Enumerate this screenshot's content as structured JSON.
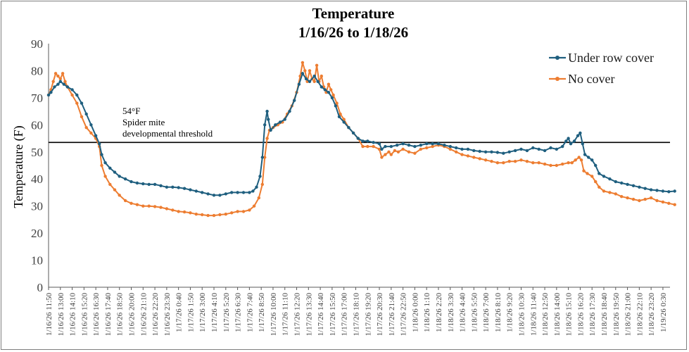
{
  "chart_data": {
    "type": "line",
    "title": "Temperature",
    "subtitle": "1/16/26 to 1/18/26",
    "xlabel": "",
    "ylabel": "Temperature (F)",
    "ylim": [
      0,
      90
    ],
    "yticks": [
      0,
      10,
      20,
      30,
      40,
      50,
      60,
      70,
      80,
      90
    ],
    "grid": false,
    "legend_position": "top-right",
    "x_tick_labels": [
      "1/16/26 11:50",
      "1/16/26 13:00",
      "1/16/26 14:10",
      "1/16/26 15:20",
      "1/16/26 16:30",
      "1/16/26 17:40",
      "1/16/26 18:50",
      "1/16/26 20:00",
      "1/16/26 21:10",
      "1/16/26 22:20",
      "1/16/26 23:30",
      "1/17/26 0:40",
      "1/17/26 1:50",
      "1/17/26 3:00",
      "1/17/26 4:10",
      "1/17/26 5:20",
      "1/17/26 6:30",
      "1/17/26 7:40",
      "1/17/26 8:50",
      "1/17/26 10:00",
      "1/17/26 11:10",
      "1/17/26 12:20",
      "1/17/26 13:30",
      "1/17/26 14:40",
      "1/17/26 15:50",
      "1/17/26 17:00",
      "1/17/26 18:10",
      "1/17/26 19:20",
      "1/17/26 20:30",
      "1/17/26 21:40",
      "1/17/26 22:50",
      "1/18/26 0:00",
      "1/18/26 1:10",
      "1/18/26 2:20",
      "1/18/26 3:30",
      "1/18/26 4:40",
      "1/18/26 5:50",
      "1/18/26 7:00",
      "1/18/26 8:10",
      "1/18/26 9:20",
      "1/18/26 10:30",
      "1/18/26 11:40",
      "1/18/26 12:50",
      "1/18/26 14:00",
      "1/18/26 15:10",
      "1/18/26 16:20",
      "1/18/26 17:30",
      "1/18/26 18:40",
      "1/18/26 19:50",
      "1/18/26 21:00",
      "1/18/26 22:10",
      "1/18/26 23:20",
      "1/19/26 0:30"
    ],
    "threshold": {
      "value": 53.5,
      "label_lines": [
        "54°F",
        "Spider mite",
        "developmental threshold"
      ]
    },
    "series": [
      {
        "name": "Under row cover",
        "color": "#1f5f7f",
        "points": [
          [
            0,
            71
          ],
          [
            0.2,
            72
          ],
          [
            0.5,
            74
          ],
          [
            0.8,
            75
          ],
          [
            1,
            76
          ],
          [
            1.3,
            75
          ],
          [
            1.6,
            74
          ],
          [
            2,
            73
          ],
          [
            2.4,
            71
          ],
          [
            2.8,
            68
          ],
          [
            3.2,
            64
          ],
          [
            3.6,
            60
          ],
          [
            4,
            56
          ],
          [
            4.3,
            53
          ],
          [
            4.5,
            49
          ],
          [
            4.8,
            46
          ],
          [
            5.2,
            44
          ],
          [
            5.6,
            42.5
          ],
          [
            6,
            41
          ],
          [
            6.5,
            40
          ],
          [
            7,
            39
          ],
          [
            7.5,
            38.5
          ],
          [
            8,
            38.2
          ],
          [
            8.5,
            38
          ],
          [
            9,
            38
          ],
          [
            9.5,
            37.5
          ],
          [
            10,
            37
          ],
          [
            10.5,
            37
          ],
          [
            11,
            36.8
          ],
          [
            11.5,
            36.5
          ],
          [
            12,
            36
          ],
          [
            12.5,
            35.5
          ],
          [
            13,
            35
          ],
          [
            13.5,
            34.5
          ],
          [
            14,
            34
          ],
          [
            14.5,
            34
          ],
          [
            15,
            34.5
          ],
          [
            15.5,
            35
          ],
          [
            16,
            35
          ],
          [
            16.5,
            35
          ],
          [
            17,
            35
          ],
          [
            17.3,
            35.5
          ],
          [
            17.6,
            37
          ],
          [
            17.9,
            41
          ],
          [
            18.1,
            48
          ],
          [
            18.3,
            60
          ],
          [
            18.5,
            65
          ],
          [
            18.6,
            62
          ],
          [
            18.8,
            58
          ],
          [
            19.2,
            60
          ],
          [
            19.6,
            61
          ],
          [
            20,
            62
          ],
          [
            20.4,
            65
          ],
          [
            20.8,
            69
          ],
          [
            21.2,
            75
          ],
          [
            21.5,
            79
          ],
          [
            21.8,
            77
          ],
          [
            22.1,
            76
          ],
          [
            22.5,
            78
          ],
          [
            22.8,
            76
          ],
          [
            23.1,
            74
          ],
          [
            23.4,
            73
          ],
          [
            23.7,
            72
          ],
          [
            24,
            70
          ],
          [
            24.3,
            67
          ],
          [
            24.6,
            63
          ],
          [
            25,
            61
          ],
          [
            25.4,
            59
          ],
          [
            25.8,
            57
          ],
          [
            26.2,
            55
          ],
          [
            26.6,
            54
          ],
          [
            27,
            54
          ],
          [
            27.5,
            53.5
          ],
          [
            28,
            53
          ],
          [
            28.2,
            51
          ],
          [
            28.5,
            52
          ],
          [
            29,
            52
          ],
          [
            29.5,
            52.5
          ],
          [
            30,
            53
          ],
          [
            30.5,
            52.5
          ],
          [
            31,
            52
          ],
          [
            31.5,
            52.5
          ],
          [
            32,
            53
          ],
          [
            32.5,
            53
          ],
          [
            33,
            53
          ],
          [
            33.5,
            52.5
          ],
          [
            34,
            52
          ],
          [
            34.5,
            51.5
          ],
          [
            35,
            51
          ],
          [
            35.5,
            51
          ],
          [
            36,
            50.5
          ],
          [
            36.5,
            50.2
          ],
          [
            37,
            50
          ],
          [
            37.5,
            50
          ],
          [
            38,
            49.8
          ],
          [
            38.5,
            49.5
          ],
          [
            39,
            50
          ],
          [
            39.5,
            50.5
          ],
          [
            40,
            51
          ],
          [
            40.5,
            50.5
          ],
          [
            41,
            51.5
          ],
          [
            41.5,
            51
          ],
          [
            42,
            50.5
          ],
          [
            42.5,
            51.5
          ],
          [
            43,
            51
          ],
          [
            43.5,
            52
          ],
          [
            43.8,
            54
          ],
          [
            44,
            55
          ],
          [
            44.2,
            53
          ],
          [
            44.5,
            54
          ],
          [
            44.8,
            56
          ],
          [
            45,
            57
          ],
          [
            45.2,
            53
          ],
          [
            45.4,
            49
          ],
          [
            45.7,
            48
          ],
          [
            46,
            47
          ],
          [
            46.3,
            45
          ],
          [
            46.6,
            42
          ],
          [
            47,
            41
          ],
          [
            47.5,
            40
          ],
          [
            48,
            39
          ],
          [
            48.5,
            38.5
          ],
          [
            49,
            38
          ],
          [
            49.5,
            37.5
          ],
          [
            50,
            37
          ],
          [
            50.5,
            36.5
          ],
          [
            51,
            36
          ],
          [
            51.5,
            35.8
          ],
          [
            52,
            35.5
          ],
          [
            52.5,
            35.3
          ],
          [
            53,
            35.5
          ]
        ]
      },
      {
        "name": "No cover",
        "color": "#ed7d31",
        "points": [
          [
            0,
            71
          ],
          [
            0.2,
            73
          ],
          [
            0.4,
            76
          ],
          [
            0.6,
            79
          ],
          [
            0.8,
            78
          ],
          [
            1,
            77
          ],
          [
            1.2,
            79
          ],
          [
            1.4,
            76
          ],
          [
            1.6,
            74
          ],
          [
            2,
            71
          ],
          [
            2.4,
            68
          ],
          [
            2.8,
            63
          ],
          [
            3.2,
            59
          ],
          [
            3.6,
            57
          ],
          [
            4,
            55
          ],
          [
            4.3,
            52
          ],
          [
            4.5,
            45
          ],
          [
            4.8,
            41
          ],
          [
            5.2,
            38
          ],
          [
            5.6,
            36
          ],
          [
            6,
            34
          ],
          [
            6.5,
            32
          ],
          [
            7,
            31
          ],
          [
            7.5,
            30.5
          ],
          [
            8,
            30
          ],
          [
            8.5,
            30
          ],
          [
            9,
            29.8
          ],
          [
            9.5,
            29.5
          ],
          [
            10,
            29
          ],
          [
            10.5,
            28.5
          ],
          [
            11,
            28
          ],
          [
            11.5,
            27.8
          ],
          [
            12,
            27.5
          ],
          [
            12.5,
            27
          ],
          [
            13,
            26.8
          ],
          [
            13.5,
            26.5
          ],
          [
            14,
            26.5
          ],
          [
            14.5,
            26.8
          ],
          [
            15,
            27
          ],
          [
            15.5,
            27.5
          ],
          [
            16,
            28
          ],
          [
            16.5,
            28
          ],
          [
            17,
            28.5
          ],
          [
            17.4,
            30
          ],
          [
            17.8,
            33
          ],
          [
            18.1,
            38
          ],
          [
            18.3,
            48
          ],
          [
            18.5,
            55
          ],
          [
            18.7,
            58
          ],
          [
            19,
            59
          ],
          [
            19.4,
            60
          ],
          [
            19.8,
            61
          ],
          [
            20.2,
            64
          ],
          [
            20.6,
            67
          ],
          [
            21,
            72
          ],
          [
            21.3,
            78
          ],
          [
            21.5,
            83
          ],
          [
            21.7,
            80
          ],
          [
            21.9,
            76
          ],
          [
            22.1,
            80
          ],
          [
            22.3,
            77
          ],
          [
            22.5,
            76
          ],
          [
            22.7,
            82
          ],
          [
            22.9,
            76
          ],
          [
            23.1,
            78
          ],
          [
            23.3,
            74
          ],
          [
            23.5,
            72
          ],
          [
            23.7,
            75
          ],
          [
            23.9,
            73
          ],
          [
            24.1,
            71
          ],
          [
            24.4,
            68
          ],
          [
            24.7,
            64
          ],
          [
            25,
            62
          ],
          [
            25.4,
            59
          ],
          [
            25.8,
            57
          ],
          [
            26.2,
            55
          ],
          [
            26.6,
            52
          ],
          [
            27,
            52
          ],
          [
            27.5,
            52
          ],
          [
            28,
            51
          ],
          [
            28.2,
            48
          ],
          [
            28.5,
            49
          ],
          [
            28.8,
            50
          ],
          [
            29,
            49
          ],
          [
            29.3,
            50.5
          ],
          [
            29.6,
            50
          ],
          [
            30,
            51
          ],
          [
            30.5,
            50
          ],
          [
            31,
            49.5
          ],
          [
            31.5,
            51
          ],
          [
            32,
            51.5
          ],
          [
            32.5,
            52
          ],
          [
            33,
            52.5
          ],
          [
            33.5,
            52
          ],
          [
            34,
            51
          ],
          [
            34.5,
            50
          ],
          [
            35,
            49
          ],
          [
            35.5,
            48.5
          ],
          [
            36,
            48
          ],
          [
            36.5,
            47.5
          ],
          [
            37,
            47
          ],
          [
            37.5,
            46.5
          ],
          [
            38,
            46
          ],
          [
            38.5,
            46
          ],
          [
            39,
            46.5
          ],
          [
            39.5,
            46.5
          ],
          [
            40,
            47
          ],
          [
            40.5,
            46.5
          ],
          [
            41,
            46
          ],
          [
            41.5,
            46
          ],
          [
            42,
            45.5
          ],
          [
            42.5,
            45
          ],
          [
            43,
            45
          ],
          [
            43.5,
            45.5
          ],
          [
            44,
            46
          ],
          [
            44.3,
            46
          ],
          [
            44.6,
            47
          ],
          [
            44.9,
            48
          ],
          [
            45.1,
            47
          ],
          [
            45.3,
            43
          ],
          [
            45.6,
            42
          ],
          [
            46,
            41
          ],
          [
            46.3,
            39
          ],
          [
            46.6,
            37
          ],
          [
            47,
            35.5
          ],
          [
            47.5,
            35
          ],
          [
            48,
            34.5
          ],
          [
            48.5,
            33.5
          ],
          [
            49,
            33
          ],
          [
            49.5,
            32.5
          ],
          [
            50,
            32
          ],
          [
            50.5,
            32.5
          ],
          [
            51,
            33
          ],
          [
            51.5,
            32
          ],
          [
            52,
            31.5
          ],
          [
            52.5,
            31
          ],
          [
            53,
            30.5
          ]
        ]
      }
    ]
  }
}
